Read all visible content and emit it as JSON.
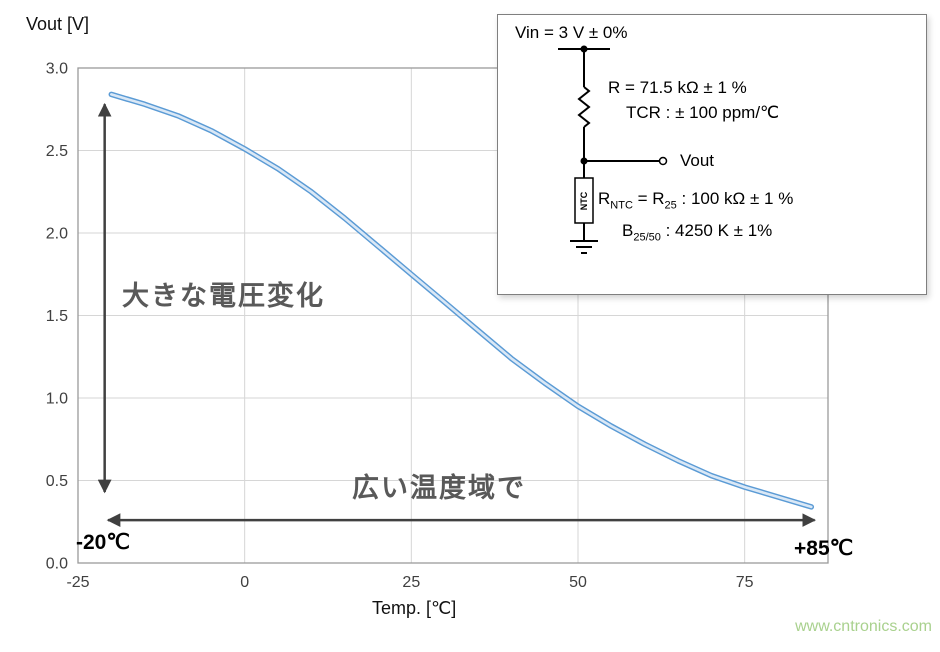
{
  "watermark": {
    "text": "www.cntronics.com",
    "color": "#a9d18e"
  },
  "chart_data": {
    "type": "line",
    "title": "",
    "ylabel": "Vout [V]",
    "xlabel": "Temp. [℃]",
    "xlim": [
      -25,
      87.5
    ],
    "ylim": [
      0,
      3.0
    ],
    "grid": true,
    "legend": "none",
    "x_ticks": [
      {
        "v": -25,
        "label": "-25"
      },
      {
        "v": 0,
        "label": "0"
      },
      {
        "v": 25,
        "label": "25"
      },
      {
        "v": 50,
        "label": "50"
      },
      {
        "v": 75,
        "label": "75"
      }
    ],
    "y_ticks": [
      {
        "v": 0,
        "label": "0.0"
      },
      {
        "v": 0.5,
        "label": "0.5"
      },
      {
        "v": 1,
        "label": "1.0"
      },
      {
        "v": 1.5,
        "label": "1.5"
      },
      {
        "v": 2,
        "label": "2.0"
      },
      {
        "v": 2.5,
        "label": "2.5"
      },
      {
        "v": 3,
        "label": "3.0"
      }
    ],
    "series": [
      {
        "name": "Vout",
        "x": [
          -20,
          -15,
          -10,
          -5,
          0,
          5,
          10,
          15,
          20,
          25,
          30,
          35,
          40,
          45,
          50,
          55,
          60,
          65,
          70,
          75,
          80,
          85
        ],
        "y": [
          2.84,
          2.78,
          2.71,
          2.62,
          2.51,
          2.39,
          2.25,
          2.09,
          1.92,
          1.75,
          1.58,
          1.41,
          1.24,
          1.09,
          0.95,
          0.83,
          0.72,
          0.62,
          0.53,
          0.46,
          0.4,
          0.34
        ]
      }
    ],
    "annotations": {
      "vertical_arrow": {
        "label": "大きな電圧変化",
        "x": -21,
        "y_from": 0.43,
        "y_to": 2.78
      },
      "horizontal_arrow": {
        "label": "広い温度域で",
        "y": 0.26,
        "x_from": -20.5,
        "x_to": 85.5
      },
      "x_min_label": "-20℃",
      "x_max_label": "+85℃"
    },
    "colors": {
      "curve_outer": "#5b9bd5",
      "curve_inner": "#dae8f6",
      "grid": "#d6d6d6",
      "border": "#9a9a9a",
      "arrow": "#404040",
      "annotation_text": "#595959",
      "tick_text": "#404040"
    }
  },
  "inset": {
    "vin_label": "Vin = 3 V ± 0%",
    "r_label": "R = 71.5 kΩ ± 1 %",
    "tcr_label": "TCR : ± 100 ppm/℃",
    "vout_label": "Vout",
    "ntc_label": "NTC",
    "rntc": {
      "p1": "R",
      "sub1": "NTC",
      "p2": " =  R",
      "sub2": "25",
      "p3": " : 100 kΩ ± 1 %"
    },
    "b": {
      "p1": "B",
      "sub1": "25/50",
      "p2": " : 4250 K ± 1%"
    }
  }
}
